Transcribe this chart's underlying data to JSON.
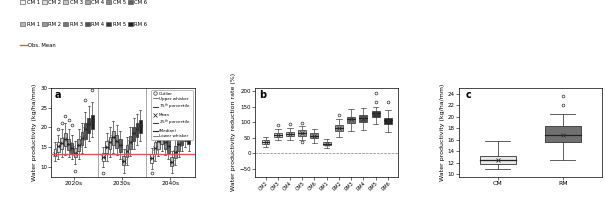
{
  "legend_cm_colors": [
    "#f5f5f5",
    "#e0e0e0",
    "#c8c8c8",
    "#a8a8a8",
    "#888888",
    "#606060"
  ],
  "legend_rm_colors": [
    "#b8b8b8",
    "#989898",
    "#787878",
    "#505050",
    "#383838",
    "#202020"
  ],
  "legend_cm_labels": [
    "CM 1",
    "CM 2",
    "CM 3",
    "CM 4",
    "CM 5",
    "CM 6"
  ],
  "legend_rm_labels": [
    "RM 1",
    "RM 2",
    "RM 3",
    "RM 4",
    "RM 5",
    "RM 6"
  ],
  "obs_mean": 13.2,
  "panel_a_decade_labels": [
    "2020s",
    "2030s",
    "2040s"
  ],
  "panel_a_ylim": [
    7.5,
    30
  ],
  "panel_a_yticks": [
    10,
    15,
    20,
    25,
    30
  ],
  "panel_a_ylabel": "Water productivity (kg/ha/mm)",
  "panel_b_categories": [
    "CM2",
    "CM3",
    "CM4",
    "CM5",
    "CM6",
    "RM1",
    "RM2",
    "RM3",
    "RM4",
    "RM5",
    "RM6"
  ],
  "panel_b_ylim": [
    -75,
    210
  ],
  "panel_b_yticks": [
    -50,
    0,
    50,
    100,
    150,
    200
  ],
  "panel_b_ylabel": "Water productivity reduction rate (%)",
  "panel_b_colors": [
    "#e8e8e8",
    "#d0d0d0",
    "#b8b8b8",
    "#a0a0a0",
    "#888888",
    "#b0b0b0",
    "#909090",
    "#707070",
    "#505050",
    "#383838",
    "#202020"
  ],
  "panel_b_boxes": {
    "CM2": {
      "q1": 30,
      "median": 37,
      "q3": 43,
      "mean": 37,
      "whislo": 20,
      "whishi": 52,
      "fliers_hi": [],
      "fliers_lo": []
    },
    "CM3": {
      "q1": 54,
      "median": 60,
      "q3": 66,
      "mean": 60,
      "whislo": 42,
      "whishi": 78,
      "fliers_hi": [
        90
      ],
      "fliers_lo": []
    },
    "CM4": {
      "q1": 56,
      "median": 62,
      "q3": 68,
      "mean": 62,
      "whislo": 42,
      "whishi": 80,
      "fliers_hi": [
        93
      ],
      "fliers_lo": []
    },
    "CM5": {
      "q1": 57,
      "median": 65,
      "q3": 74,
      "mean": 65,
      "whislo": 42,
      "whishi": 87,
      "fliers_hi": [
        97
      ],
      "fliers_lo": [
        37
      ]
    },
    "CM6": {
      "q1": 50,
      "median": 57,
      "q3": 65,
      "mean": 57,
      "whislo": 35,
      "whishi": 77,
      "fliers_hi": [],
      "fliers_lo": []
    },
    "RM1": {
      "q1": 27,
      "median": 31,
      "q3": 37,
      "mean": 31,
      "whislo": 18,
      "whishi": 46,
      "fliers_hi": [],
      "fliers_lo": []
    },
    "RM2": {
      "q1": 72,
      "median": 80,
      "q3": 90,
      "mean": 80,
      "whislo": 52,
      "whishi": 110,
      "fliers_hi": [
        122
      ],
      "fliers_lo": []
    },
    "RM3": {
      "q1": 98,
      "median": 110,
      "q3": 118,
      "mean": 109,
      "whislo": 72,
      "whishi": 142,
      "fliers_hi": [],
      "fliers_lo": []
    },
    "RM4": {
      "q1": 100,
      "median": 112,
      "q3": 122,
      "mean": 111,
      "whislo": 74,
      "whishi": 145,
      "fliers_hi": [],
      "fliers_lo": []
    },
    "RM5": {
      "q1": 118,
      "median": 128,
      "q3": 135,
      "mean": 127,
      "whislo": 95,
      "whishi": 148,
      "fliers_hi": [
        195,
        165
      ],
      "fliers_lo": []
    },
    "RM6": {
      "q1": 93,
      "median": 106,
      "q3": 115,
      "mean": 105,
      "whislo": 68,
      "whishi": 140,
      "fliers_hi": [
        165
      ],
      "fliers_lo": []
    }
  },
  "panel_c_ylabel": "Water productivity (kg/ha/mm)",
  "panel_c_ylim": [
    9.5,
    25
  ],
  "panel_c_yticks": [
    10,
    12,
    14,
    16,
    18,
    20,
    22,
    24
  ],
  "panel_c_categories": [
    "CM",
    "RM"
  ],
  "panel_c_cm": {
    "q1": 11.8,
    "median": 12.5,
    "q3": 13.2,
    "mean": 12.5,
    "whislo": 10.8,
    "whishi": 15.8,
    "fliers_hi": [],
    "fliers_lo": []
  },
  "panel_c_rm": {
    "q1": 15.5,
    "median": 16.8,
    "q3": 18.3,
    "mean": 16.8,
    "whislo": 12.5,
    "whishi": 20.5,
    "fliers_hi": [
      23.5,
      22.0
    ],
    "fliers_lo": []
  },
  "panel_c_cm_color": "#e8e8e8",
  "panel_c_rm_color": "#707070",
  "panel_a_cm_data": {
    "2020s": [
      {
        "q1": 12.8,
        "median": 13.2,
        "q3": 14.5,
        "mean": 13.3,
        "whislo": 11.5,
        "whishi": 16.2,
        "fliers_hi": [],
        "fliers_lo": []
      },
      {
        "q1": 13.8,
        "median": 15.2,
        "q3": 16.2,
        "mean": 15.2,
        "whislo": 12.0,
        "whishi": 18.0,
        "fliers_hi": [
          19.5
        ],
        "fliers_lo": []
      },
      {
        "q1": 14.5,
        "median": 16.0,
        "q3": 17.2,
        "mean": 16.0,
        "whislo": 12.5,
        "whishi": 19.5,
        "fliers_hi": [
          21.0
        ],
        "fliers_lo": []
      },
      {
        "q1": 15.2,
        "median": 17.0,
        "q3": 18.5,
        "mean": 17.0,
        "whislo": 13.0,
        "whishi": 21.0,
        "fliers_hi": [
          23.0
        ],
        "fliers_lo": []
      },
      {
        "q1": 14.2,
        "median": 15.8,
        "q3": 17.0,
        "mean": 15.8,
        "whislo": 12.5,
        "whishi": 19.5,
        "fliers_hi": [
          22.0
        ],
        "fliers_lo": []
      },
      {
        "q1": 13.5,
        "median": 14.8,
        "q3": 16.0,
        "mean": 14.8,
        "whislo": 12.0,
        "whishi": 18.0,
        "fliers_hi": [
          20.5
        ],
        "fliers_lo": []
      }
    ],
    "2030s": [
      {
        "q1": 11.5,
        "median": 12.5,
        "q3": 13.5,
        "mean": 12.5,
        "whislo": 10.0,
        "whishi": 15.0,
        "fliers_hi": [],
        "fliers_lo": [
          8.5
        ]
      },
      {
        "q1": 13.5,
        "median": 15.0,
        "q3": 16.5,
        "mean": 15.0,
        "whislo": 11.5,
        "whishi": 18.5,
        "fliers_hi": [],
        "fliers_lo": []
      },
      {
        "q1": 14.5,
        "median": 16.2,
        "q3": 17.5,
        "mean": 16.2,
        "whislo": 12.5,
        "whishi": 20.0,
        "fliers_hi": [],
        "fliers_lo": []
      },
      {
        "q1": 15.5,
        "median": 17.5,
        "q3": 19.0,
        "mean": 17.5,
        "whislo": 13.5,
        "whishi": 21.5,
        "fliers_hi": [],
        "fliers_lo": []
      },
      {
        "q1": 14.8,
        "median": 16.5,
        "q3": 18.0,
        "mean": 16.5,
        "whislo": 13.0,
        "whishi": 20.5,
        "fliers_hi": [],
        "fliers_lo": []
      },
      {
        "q1": 13.8,
        "median": 15.5,
        "q3": 17.0,
        "mean": 15.5,
        "whislo": 12.0,
        "whishi": 19.0,
        "fliers_hi": [],
        "fliers_lo": []
      }
    ],
    "2040s": [
      {
        "q1": 11.0,
        "median": 12.2,
        "q3": 13.2,
        "mean": 12.2,
        "whislo": 9.5,
        "whishi": 14.8,
        "fliers_hi": [],
        "fliers_lo": [
          8.5
        ]
      },
      {
        "q1": 13.2,
        "median": 14.8,
        "q3": 16.2,
        "mean": 14.8,
        "whislo": 11.5,
        "whishi": 18.0,
        "fliers_hi": [],
        "fliers_lo": []
      },
      {
        "q1": 14.5,
        "median": 16.5,
        "q3": 17.8,
        "mean": 16.5,
        "whislo": 12.8,
        "whishi": 20.5,
        "fliers_hi": [],
        "fliers_lo": []
      },
      {
        "q1": 15.8,
        "median": 17.5,
        "q3": 19.2,
        "mean": 17.5,
        "whislo": 14.0,
        "whishi": 21.5,
        "fliers_hi": [],
        "fliers_lo": []
      },
      {
        "q1": 14.5,
        "median": 16.2,
        "q3": 17.8,
        "mean": 16.2,
        "whislo": 13.0,
        "whishi": 20.0,
        "fliers_hi": [],
        "fliers_lo": []
      },
      {
        "q1": 13.5,
        "median": 15.2,
        "q3": 16.8,
        "mean": 15.2,
        "whislo": 12.0,
        "whishi": 18.8,
        "fliers_hi": [],
        "fliers_lo": []
      }
    ]
  },
  "panel_a_rm_data": {
    "2020s": [
      {
        "q1": 12.5,
        "median": 13.5,
        "q3": 14.8,
        "mean": 13.5,
        "whislo": 10.8,
        "whishi": 16.5,
        "fliers_hi": [],
        "fliers_lo": [
          9.0
        ]
      },
      {
        "q1": 14.0,
        "median": 15.5,
        "q3": 17.0,
        "mean": 15.5,
        "whislo": 12.0,
        "whishi": 19.5,
        "fliers_hi": [],
        "fliers_lo": []
      },
      {
        "q1": 15.5,
        "median": 17.2,
        "q3": 18.8,
        "mean": 17.2,
        "whislo": 13.5,
        "whishi": 21.0,
        "fliers_hi": [],
        "fliers_lo": []
      },
      {
        "q1": 17.0,
        "median": 19.5,
        "q3": 21.2,
        "mean": 19.5,
        "whislo": 15.0,
        "whishi": 24.0,
        "fliers_hi": [
          27.0
        ],
        "fliers_lo": []
      },
      {
        "q1": 18.5,
        "median": 20.8,
        "q3": 22.5,
        "mean": 20.8,
        "whislo": 16.5,
        "whishi": 25.5,
        "fliers_hi": [],
        "fliers_lo": []
      },
      {
        "q1": 19.5,
        "median": 21.5,
        "q3": 23.2,
        "mean": 21.5,
        "whislo": 17.5,
        "whishi": 26.5,
        "fliers_hi": [
          29.5
        ],
        "fliers_lo": []
      }
    ],
    "2030s": [
      {
        "q1": 10.5,
        "median": 11.5,
        "q3": 12.8,
        "mean": 11.5,
        "whislo": 8.5,
        "whishi": 14.5,
        "fliers_hi": [],
        "fliers_lo": []
      },
      {
        "q1": 12.5,
        "median": 14.0,
        "q3": 15.5,
        "mean": 14.0,
        "whislo": 10.5,
        "whishi": 17.5,
        "fliers_hi": [],
        "fliers_lo": []
      },
      {
        "q1": 14.5,
        "median": 16.2,
        "q3": 17.8,
        "mean": 16.2,
        "whislo": 12.8,
        "whishi": 20.0,
        "fliers_hi": [],
        "fliers_lo": []
      },
      {
        "q1": 16.5,
        "median": 18.5,
        "q3": 20.2,
        "mean": 18.5,
        "whislo": 14.5,
        "whishi": 22.5,
        "fliers_hi": [],
        "fliers_lo": []
      },
      {
        "q1": 17.5,
        "median": 19.5,
        "q3": 21.2,
        "mean": 19.5,
        "whislo": 15.5,
        "whishi": 23.5,
        "fliers_hi": [],
        "fliers_lo": []
      },
      {
        "q1": 18.5,
        "median": 20.5,
        "q3": 22.0,
        "mean": 20.5,
        "whislo": 16.5,
        "whishi": 24.5,
        "fliers_hi": [],
        "fliers_lo": []
      }
    ],
    "2040s": [
      {
        "q1": 10.2,
        "median": 11.2,
        "q3": 12.5,
        "mean": 11.2,
        "whislo": 8.5,
        "whishi": 14.0,
        "fliers_hi": [],
        "fliers_lo": []
      },
      {
        "q1": 12.2,
        "median": 13.8,
        "q3": 15.2,
        "mean": 13.8,
        "whislo": 10.5,
        "whishi": 17.0,
        "fliers_hi": [],
        "fliers_lo": []
      },
      {
        "q1": 14.0,
        "median": 15.8,
        "q3": 17.5,
        "mean": 15.8,
        "whislo": 12.5,
        "whishi": 19.5,
        "fliers_hi": [],
        "fliers_lo": []
      },
      {
        "q1": 15.5,
        "median": 17.5,
        "q3": 19.0,
        "mean": 17.5,
        "whislo": 14.0,
        "whishi": 21.0,
        "fliers_hi": [],
        "fliers_lo": []
      },
      {
        "q1": 16.5,
        "median": 18.2,
        "q3": 19.8,
        "mean": 18.2,
        "whislo": 15.0,
        "whishi": 22.0,
        "fliers_hi": [],
        "fliers_lo": []
      },
      {
        "q1": 15.8,
        "median": 17.5,
        "q3": 19.0,
        "mean": 17.5,
        "whislo": 14.0,
        "whishi": 21.0,
        "fliers_hi": [],
        "fliers_lo": []
      }
    ]
  }
}
